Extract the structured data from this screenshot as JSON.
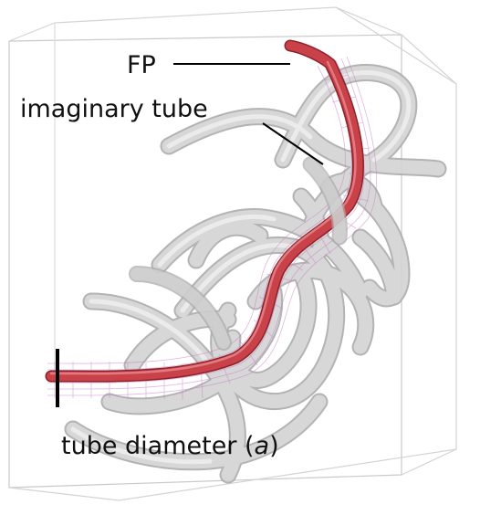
{
  "labels": {
    "fp": "FP",
    "imaginary_tube": "imaginary tube",
    "tube_diameter_main": "tube diameter (",
    "tube_diameter_symbol": "a",
    "tube_diameter_close": ")"
  },
  "colors": {
    "background": "#ffffff",
    "box_edge": "#c9c9c9",
    "grey_tube": "#cfcfcf",
    "grey_tube_edge": "#a9a9a9",
    "primitive_path": "#c9424a",
    "primitive_path_edge": "#8f2128",
    "imaginary_tube": "#c87ac8",
    "pointer_line": "#000000"
  }
}
